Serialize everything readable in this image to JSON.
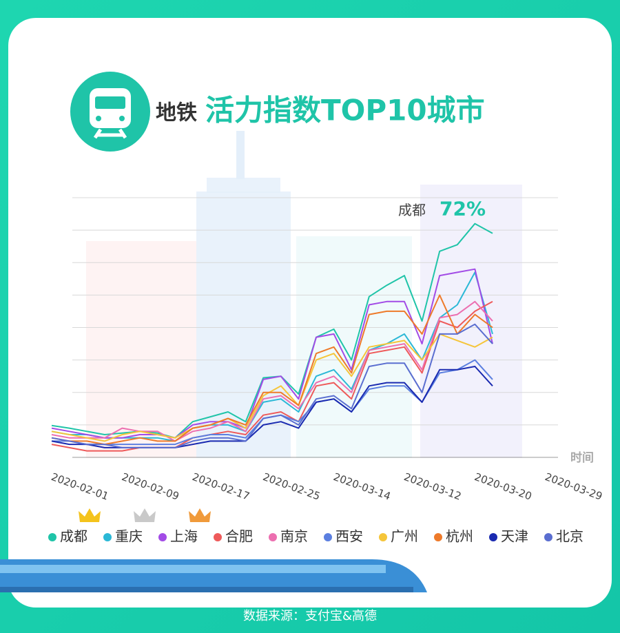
{
  "chart_data": {
    "type": "line",
    "title_prefix": "地铁",
    "title": "活力指数TOP10城市",
    "x_label": "时间",
    "source": "数据来源：支付宝&高德",
    "annotation": {
      "text": "成都",
      "value": 72,
      "label": "72%"
    },
    "categories": [
      null,
      null,
      null,
      "2020-02-01",
      null,
      null,
      null,
      "2020-02-09",
      null,
      null,
      null,
      "2020-02-17",
      null,
      null,
      null,
      "2020-02-25",
      null,
      null,
      null,
      "2020-03-14",
      null,
      null,
      null,
      "2020-03-12",
      null,
      null,
      null,
      "2020-03-20",
      null,
      null,
      null,
      "2020-03-29"
    ],
    "ylim": [
      0,
      80
    ],
    "yticks": [
      0,
      10,
      20,
      30,
      40,
      50,
      60,
      70,
      80
    ],
    "grid": true,
    "series": [
      {
        "name": "成都",
        "color": "#1fc4a8",
        "values": [
          9.8,
          9,
          8,
          7,
          7.5,
          8,
          7.5,
          6,
          11,
          12.5,
          14,
          11,
          24.5,
          25,
          19.5,
          37,
          39.5,
          30,
          49.5,
          53,
          56,
          42,
          63.5,
          65.5,
          72,
          69,
          null,
          null,
          null,
          null,
          null,
          null
        ]
      },
      {
        "name": "重庆",
        "color": "#2bb8d6",
        "values": [
          8,
          7,
          7,
          6,
          6,
          6,
          6,
          5,
          9,
          10,
          10,
          8,
          17,
          18,
          14,
          25,
          27,
          21,
          33,
          35,
          38,
          30,
          43,
          47,
          57,
          38,
          null,
          null,
          null,
          null,
          null,
          null
        ]
      },
      {
        "name": "上海",
        "color": "#a24be6",
        "values": [
          9,
          8,
          7,
          6,
          6,
          7,
          7,
          6,
          10,
          11,
          11,
          9,
          24,
          25,
          18,
          37,
          38,
          27,
          47,
          48,
          48,
          35,
          56,
          57,
          58,
          35,
          null,
          null,
          null,
          null,
          null,
          null
        ]
      },
      {
        "name": "合肥",
        "color": "#ee5a5a",
        "values": [
          4,
          3,
          2,
          2,
          2,
          3,
          3,
          3,
          6,
          7,
          8,
          7,
          13,
          14,
          11,
          22,
          23,
          18,
          32,
          33,
          34,
          26,
          42,
          40,
          45,
          48,
          null,
          null,
          null,
          null,
          null,
          null
        ]
      },
      {
        "name": "南京",
        "color": "#ec6fb0",
        "values": [
          7,
          6,
          6,
          6,
          9,
          8,
          8,
          5,
          8,
          9,
          11,
          8,
          18,
          19,
          15,
          23,
          25,
          20,
          33,
          34,
          35,
          27,
          43,
          44,
          48,
          42,
          null,
          null,
          null,
          null,
          null,
          null
        ]
      },
      {
        "name": "西安",
        "color": "#5b7fe0",
        "values": [
          5,
          5,
          4,
          4,
          4,
          4,
          4,
          4,
          6,
          7,
          7,
          6,
          12,
          13,
          11,
          17,
          18,
          14,
          21,
          22,
          22,
          17,
          26,
          27,
          30,
          24,
          null,
          null,
          null,
          null,
          null,
          null
        ]
      },
      {
        "name": "广州",
        "color": "#f5c53a",
        "values": [
          8,
          7,
          6,
          5,
          7,
          8,
          7,
          6,
          9,
          10,
          12,
          9,
          19,
          22,
          16,
          30,
          32,
          25,
          34,
          35,
          36,
          30,
          38,
          36,
          34,
          37,
          null,
          null,
          null,
          null,
          null,
          null
        ]
      },
      {
        "name": "杭州",
        "color": "#ee7a2a",
        "values": [
          6,
          5,
          5,
          4,
          5,
          6,
          5,
          5,
          9,
          10,
          12,
          10,
          20,
          20,
          16,
          32,
          34,
          26,
          44,
          45,
          45,
          38,
          50,
          38,
          44,
          40,
          null,
          null,
          null,
          null,
          null,
          null
        ]
      },
      {
        "name": "天津",
        "color": "#1a2ab0",
        "values": [
          5,
          4,
          4,
          3,
          3,
          3,
          3,
          3,
          4,
          5,
          5,
          5,
          10,
          11,
          9,
          17,
          18,
          14,
          22,
          23,
          23,
          17,
          27,
          27,
          28,
          22,
          null,
          null,
          null,
          null,
          null,
          null
        ]
      },
      {
        "name": "北京",
        "color": "#5a6ed0",
        "values": [
          6,
          5,
          4,
          4,
          3,
          3,
          3,
          3,
          5,
          6,
          6,
          5,
          12,
          13,
          10,
          18,
          19,
          15,
          28,
          29,
          29,
          20,
          38,
          38,
          41,
          35,
          null,
          null,
          null,
          null,
          null,
          null
        ]
      }
    ]
  }
}
